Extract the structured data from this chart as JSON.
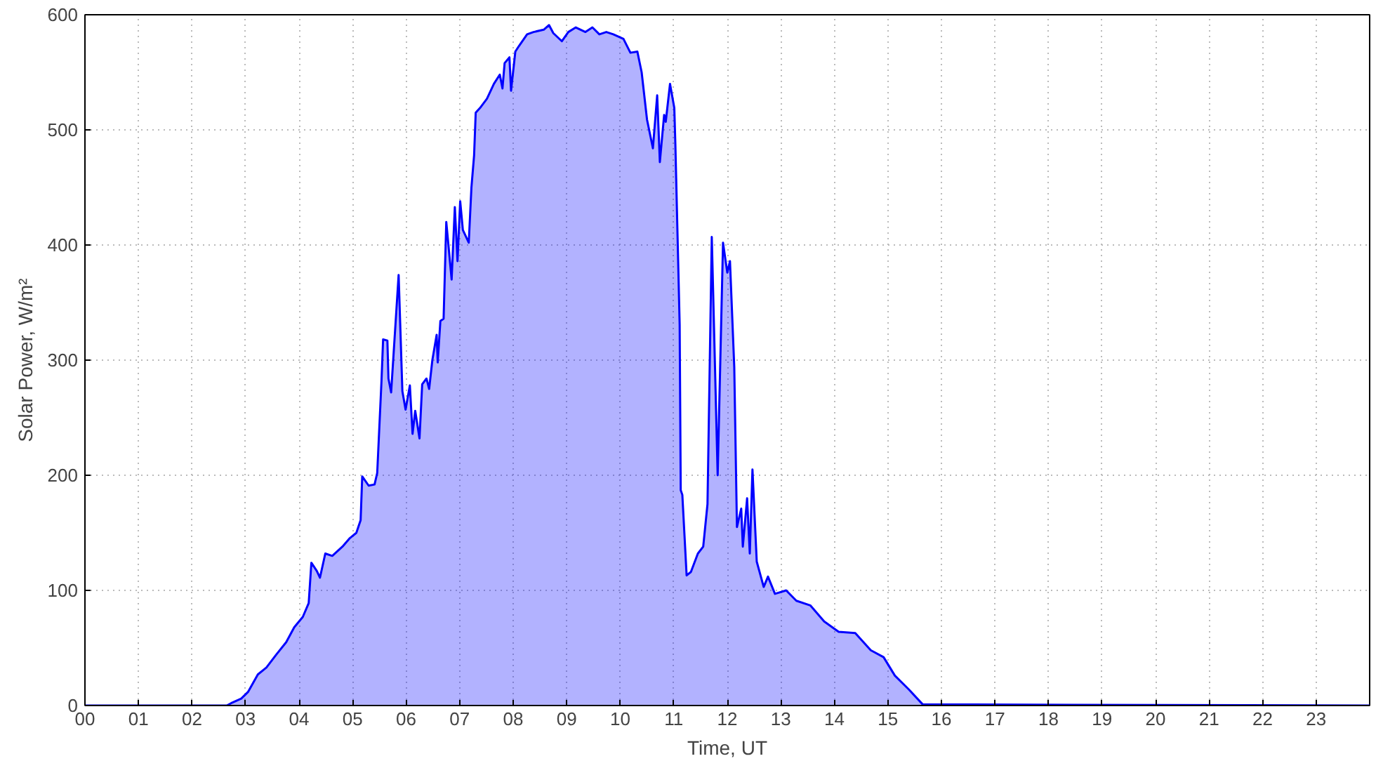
{
  "chart_data": {
    "type": "area",
    "xlabel": "Time, UT",
    "ylabel": "Solar Power, W/m²",
    "xlim": [
      0,
      24
    ],
    "ylim": [
      0,
      600
    ],
    "yticks": [
      0,
      100,
      200,
      300,
      400,
      500,
      600
    ],
    "xticks": [
      {
        "value": 0,
        "label": "00"
      },
      {
        "value": 1,
        "label": "01"
      },
      {
        "value": 2,
        "label": "02"
      },
      {
        "value": 3,
        "label": "03"
      },
      {
        "value": 4,
        "label": "04"
      },
      {
        "value": 5,
        "label": "05"
      },
      {
        "value": 6,
        "label": "06"
      },
      {
        "value": 7,
        "label": "07"
      },
      {
        "value": 8,
        "label": "08"
      },
      {
        "value": 9,
        "label": "09"
      },
      {
        "value": 10,
        "label": "10"
      },
      {
        "value": 11,
        "label": "11"
      },
      {
        "value": 12,
        "label": "12"
      },
      {
        "value": 13,
        "label": "13"
      },
      {
        "value": 14,
        "label": "14"
      },
      {
        "value": 15,
        "label": "15"
      },
      {
        "value": 16,
        "label": "16"
      },
      {
        "value": 17,
        "label": "17"
      },
      {
        "value": 18,
        "label": "18"
      },
      {
        "value": 19,
        "label": "19"
      },
      {
        "value": 20,
        "label": "20"
      },
      {
        "value": 21,
        "label": "21"
      },
      {
        "value": 22,
        "label": "22"
      },
      {
        "value": 23,
        "label": "23"
      }
    ],
    "grid": true,
    "series": [
      {
        "color": "#0000ff",
        "x": [
          0,
          2.65,
          2.73,
          2.92,
          3.05,
          3.23,
          3.39,
          3.57,
          3.76,
          3.91,
          4.07,
          4.18,
          4.23,
          4.33,
          4.39,
          4.49,
          4.62,
          4.81,
          4.94,
          5.07,
          5.15,
          5.18,
          5.3,
          5.41,
          5.46,
          5.54,
          5.57,
          5.65,
          5.67,
          5.72,
          5.86,
          5.93,
          5.99,
          6.07,
          6.12,
          6.17,
          6.25,
          6.3,
          6.38,
          6.43,
          6.49,
          6.57,
          6.59,
          6.64,
          6.7,
          6.75,
          6.85,
          6.91,
          6.96,
          7.01,
          7.06,
          7.17,
          7.22,
          7.27,
          7.3,
          7.38,
          7.51,
          7.64,
          7.75,
          7.8,
          7.84,
          7.93,
          7.96,
          8.04,
          8.11,
          8.26,
          8.38,
          8.57,
          8.67,
          8.75,
          8.91,
          9.03,
          9.17,
          9.35,
          9.48,
          9.61,
          9.74,
          9.87,
          10.06,
          10.19,
          10.32,
          10.4,
          10.5,
          10.61,
          10.69,
          10.74,
          10.82,
          10.85,
          10.93,
          11.01,
          11.03,
          11.11,
          11.13,
          11.16,
          11.24,
          11.32,
          11.45,
          11.55,
          11.63,
          11.71,
          11.82,
          11.92,
          12.0,
          12.05,
          12.13,
          12.18,
          12.26,
          12.29,
          12.37,
          12.42,
          12.47,
          12.55,
          12.68,
          12.76,
          12.89,
          13.1,
          13.29,
          13.55,
          13.81,
          14.08,
          14.39,
          14.68,
          14.92,
          15.13,
          15.39,
          15.65,
          24
        ],
        "values": [
          0,
          0,
          2,
          6,
          12,
          27,
          33,
          44,
          55,
          68,
          77,
          89,
          124,
          117,
          111,
          132,
          130,
          138,
          145,
          150,
          161,
          199,
          191,
          192,
          202,
          282,
          318,
          317,
          284,
          272,
          374,
          273,
          257,
          278,
          236,
          256,
          232,
          279,
          284,
          275,
          300,
          322,
          298,
          334,
          336,
          420,
          370,
          433,
          386,
          438,
          413,
          402,
          450,
          478,
          515,
          519,
          527,
          540,
          548,
          536,
          558,
          563,
          534,
          568,
          573,
          583,
          585,
          587,
          591,
          584,
          577,
          585,
          589,
          585,
          589,
          583,
          585,
          583,
          579,
          567,
          568,
          550,
          509,
          484,
          530,
          472,
          513,
          507,
          540,
          519,
          487,
          331,
          187,
          183,
          113,
          116,
          132,
          138,
          175,
          407,
          200,
          402,
          376,
          386,
          294,
          155,
          171,
          138,
          180,
          132,
          205,
          125,
          103,
          112,
          97,
          100,
          91,
          87,
          73,
          64,
          63,
          48,
          42,
          26,
          14,
          1,
          0
        ]
      }
    ]
  }
}
